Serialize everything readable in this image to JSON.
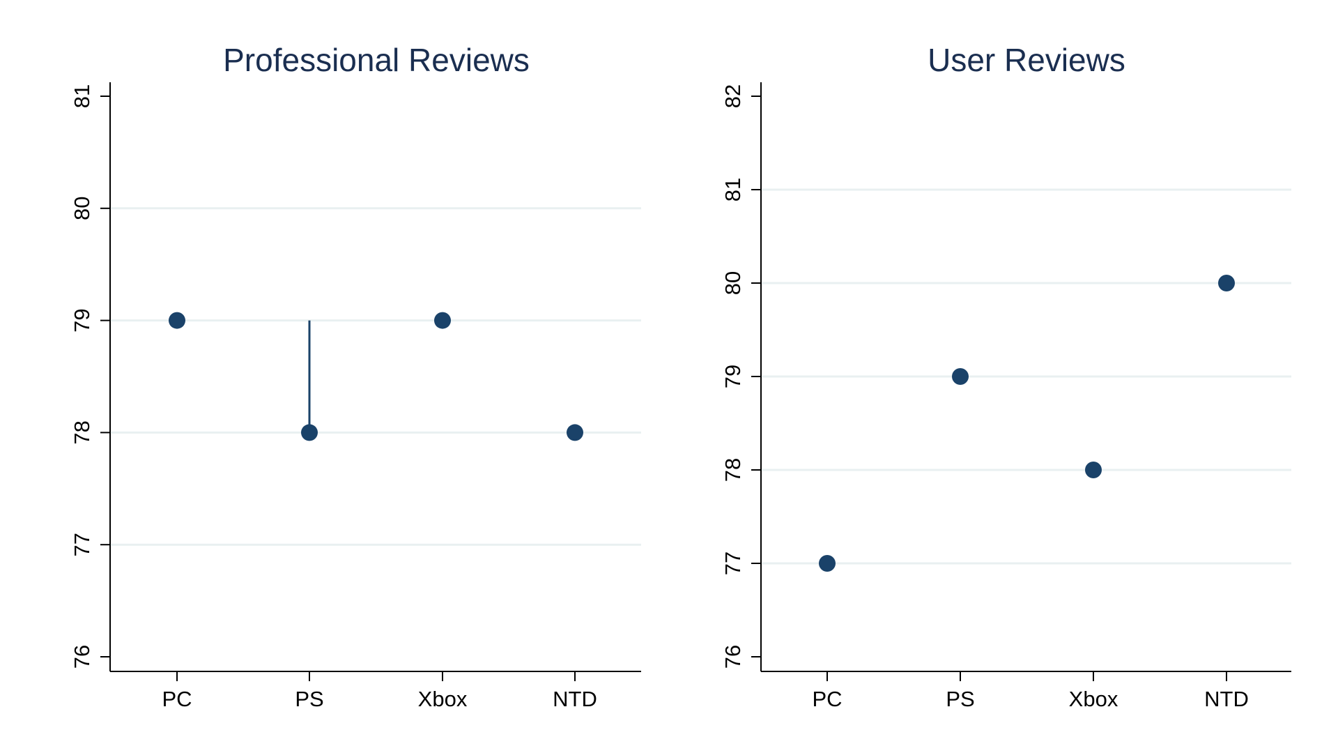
{
  "chart_data": [
    {
      "type": "scatter",
      "title": "Professional Reviews",
      "xlabel": "",
      "ylabel": "",
      "categories": [
        "PC",
        "PS",
        "Xbox",
        "NTD"
      ],
      "values": [
        79,
        78,
        79,
        78
      ],
      "spikes": [
        {
          "category": "PS",
          "from": 79,
          "to": 78
        }
      ],
      "ylim": [
        76,
        81
      ],
      "yticks": [
        76,
        77,
        78,
        79,
        80,
        81
      ],
      "grid": true,
      "legend": "none"
    },
    {
      "type": "scatter",
      "title": "User Reviews",
      "xlabel": "",
      "ylabel": "",
      "categories": [
        "PC",
        "PS",
        "Xbox",
        "NTD"
      ],
      "values": [
        77,
        79,
        78,
        80
      ],
      "spikes": [],
      "ylim": [
        76,
        82
      ],
      "yticks": [
        76,
        77,
        78,
        79,
        80,
        81,
        82
      ],
      "grid": true,
      "legend": "none"
    }
  ],
  "colors": {
    "marker": "#1a4269",
    "title": "#1a2e50",
    "grid": "#e9f0f1",
    "axis": "#000000"
  }
}
